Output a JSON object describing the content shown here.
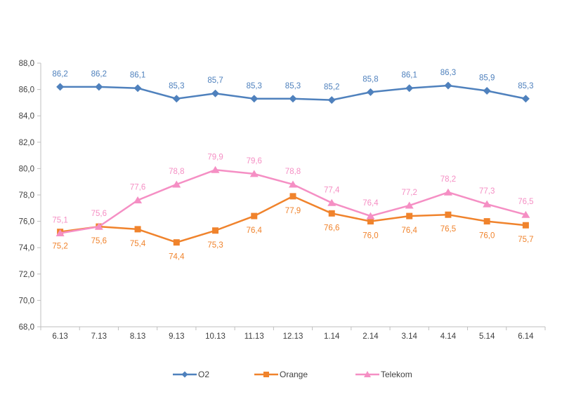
{
  "chart_data": {
    "type": "line",
    "title": "",
    "categories": [
      "6.13",
      "7.13",
      "8.13",
      "9.13",
      "10.13",
      "11.13",
      "12.13",
      "1.14",
      "2.14",
      "3.14",
      "4.14",
      "5.14",
      "6.14"
    ],
    "series": [
      {
        "name": "O2",
        "color": "#4F81BD",
        "marker": "diamond",
        "label_position": "above",
        "values": [
          86.2,
          86.2,
          86.1,
          85.3,
          85.7,
          85.3,
          85.3,
          85.2,
          85.8,
          86.1,
          86.3,
          85.9,
          85.3
        ],
        "labels": [
          "86,2",
          "86,2",
          "86,1",
          "85,3",
          "85,7",
          "85,3",
          "85,3",
          "85,2",
          "85,8",
          "86,1",
          "86,3",
          "85,9",
          "85,3"
        ]
      },
      {
        "name": "Orange",
        "color": "#F0832C",
        "marker": "square",
        "label_position": "below",
        "values": [
          75.2,
          75.6,
          75.4,
          74.4,
          75.3,
          76.4,
          77.9,
          76.6,
          76.0,
          76.4,
          76.5,
          76.0,
          75.7
        ],
        "labels": [
          "75,2",
          "75,6",
          "75,4",
          "74,4",
          "75,3",
          "76,4",
          "77,9",
          "76,6",
          "76,0",
          "76,4",
          "76,5",
          "76,0",
          "75,7"
        ]
      },
      {
        "name": "Telekom",
        "color": "#F58FC4",
        "marker": "triangle",
        "label_position": "above",
        "values": [
          75.1,
          75.6,
          77.6,
          78.8,
          79.9,
          79.6,
          78.8,
          77.4,
          76.4,
          77.2,
          78.2,
          77.3,
          76.5
        ],
        "labels": [
          "75,1",
          "75,6",
          "77,6",
          "78,8",
          "79,9",
          "79,6",
          "78,8",
          "77,4",
          "76,4",
          "77,2",
          "78,2",
          "77,3",
          "76,5"
        ]
      }
    ],
    "ylim": [
      68,
      88
    ],
    "ytick_values": [
      88,
      86,
      84,
      82,
      80,
      78,
      76,
      74,
      72,
      70,
      68
    ],
    "yticks": [
      "88,0",
      "86,0",
      "84,0",
      "82,0",
      "80,0",
      "78,0",
      "76,0",
      "74,0",
      "72,0",
      "70,0",
      "68,0"
    ],
    "grid": false,
    "legend_position": "bottom",
    "axis_color": "#BFBFBF",
    "tick_label_color": "#404040"
  },
  "legend": {
    "items": [
      {
        "label": "O2"
      },
      {
        "label": "Orange"
      },
      {
        "label": "Telekom"
      }
    ]
  }
}
